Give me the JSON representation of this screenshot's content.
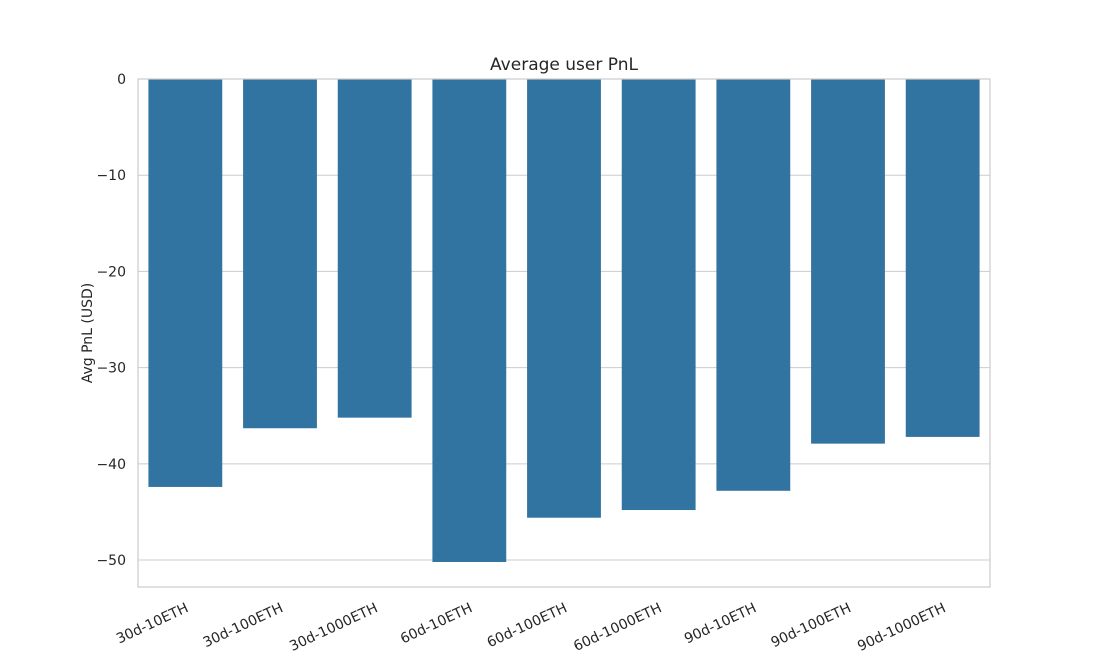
{
  "chart_data": {
    "type": "bar",
    "title": "Average user PnL",
    "xlabel": "",
    "ylabel": "Avg PnL  (USD)",
    "categories": [
      "30d-10ETH",
      "30d-100ETH",
      "30d-1000ETH",
      "60d-10ETH",
      "60d-100ETH",
      "60d-1000ETH",
      "90d-10ETH",
      "90d-100ETH",
      "90d-1000ETH"
    ],
    "values": [
      -42.4,
      -36.3,
      -35.2,
      -50.2,
      -45.6,
      -44.8,
      -42.8,
      -37.9,
      -37.2
    ],
    "ylim": [
      -52.8,
      0
    ],
    "yticks": [
      0,
      -10,
      -20,
      -30,
      -40,
      -50
    ],
    "ytick_labels": [
      "0",
      "−10",
      "−20",
      "−30",
      "−40",
      "−50"
    ],
    "bar_color": "#3274a1",
    "grid": "horizontal",
    "xtick_rotation_deg": 25
  }
}
